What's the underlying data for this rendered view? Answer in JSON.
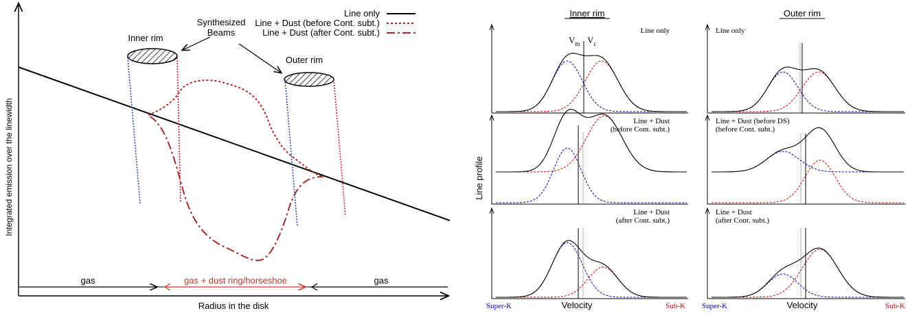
{
  "left": {
    "legend": [
      {
        "label": "Line only",
        "color": "#000000",
        "style": "solid"
      },
      {
        "label": "Line + Dust (before Cont. subt.)",
        "color": "#b22222",
        "style": "dotted"
      },
      {
        "label": "Line + Dust (after Cont. subt.)",
        "color": "#a52a2a",
        "style": "dashdot"
      }
    ],
    "synthesized_beams_line1": "Synthesized",
    "synthesized_beams_line2": "Beams",
    "inner_rim": "Inner rim",
    "outer_rim": "Outer rim",
    "ylabel": "Integrated emission over the linewidth",
    "xlabel": "Radius in the disk",
    "gas_left": "gas",
    "ring": "gas + dust ring/horseshoe",
    "gas_right": "gas"
  },
  "right": {
    "inner_title": "Inner rim",
    "outer_title": "Outer rim",
    "ylabel": "Line profile",
    "vm": "V",
    "vm_sub": "m",
    "vc": "V",
    "vc_sub": "c",
    "inner_p1": "Line only",
    "inner_p2_l1": "Line + Dust",
    "inner_p2_l2": "(before Cont. subt.)",
    "inner_p3_l1": "Line + Dust",
    "inner_p3_l2": "(after Cont. subt.)",
    "outer_p1": "Line only",
    "outer_p2_l1": "Line + Dust (before DS)",
    "outer_p2_l2": "(before Cont. subt.)",
    "outer_p3_l1": "Line + Dust",
    "outer_p3_l2": "(after Cont. subt.)",
    "super_k_1": "Super-K",
    "velocity_1": "Velocity",
    "sub_k_1": "Sub-K",
    "super_k_2": "Super-K",
    "velocity_2": "Velocity",
    "sub_k_2": "Sub-K",
    "colors": {
      "blue": "#0000cc",
      "red": "#dd0000"
    }
  }
}
